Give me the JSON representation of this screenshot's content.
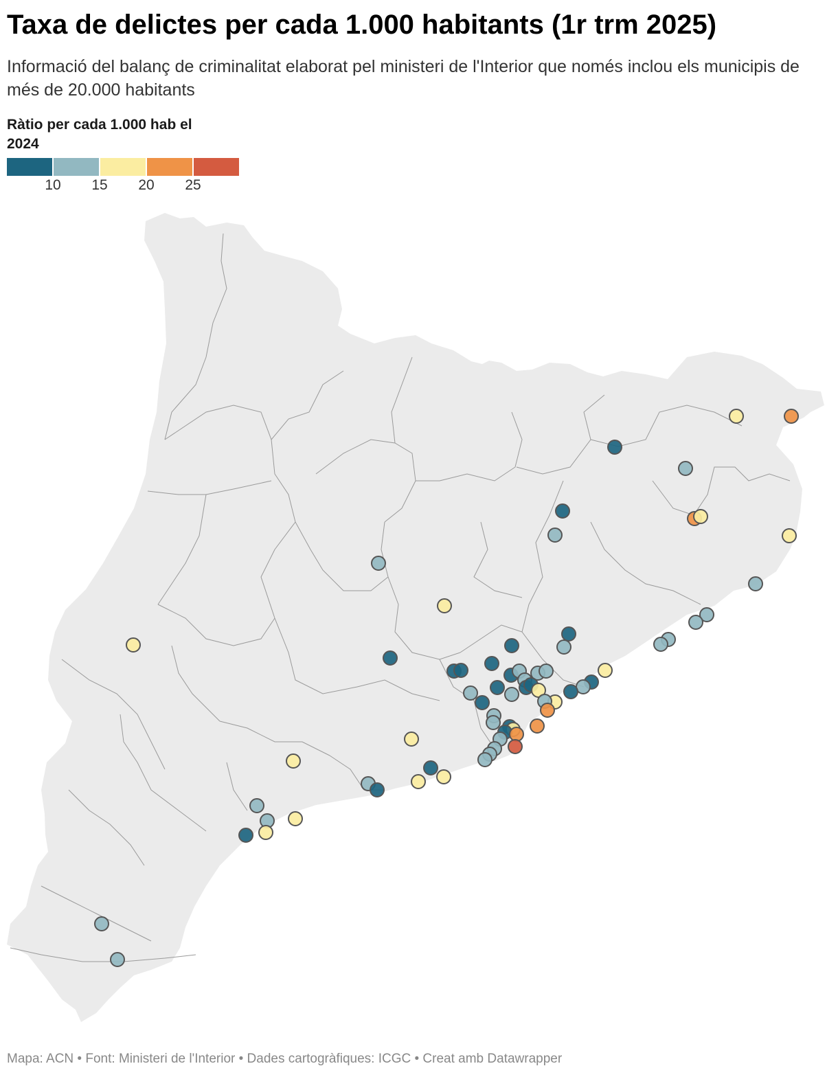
{
  "title": "Taxa de delictes per cada 1.000 habitants (1r trm 2025)",
  "subtitle": "Informació del balanç de criminalitat elaborat pel ministeri de l'Interior que només inclou els municipis de més de 20.000 habitants",
  "legend": {
    "title": "Ràtio per cada 1.000 hab el 2024",
    "colors": [
      "#1d6580",
      "#92b8c1",
      "#fbeda1",
      "#ef9347",
      "#d45b40"
    ],
    "ticks": [
      "10",
      "15",
      "20",
      "25"
    ]
  },
  "map": {
    "region": "Catalunya",
    "land_color": "#ebebeb",
    "border_color": "#9a9a9a",
    "marker_outline": "#555555"
  },
  "footer": "Mapa: ACN • Font: Ministeri de l'Interior • Dades cartogràfiques: ICGC  • Creat amb Datawrapper"
}
